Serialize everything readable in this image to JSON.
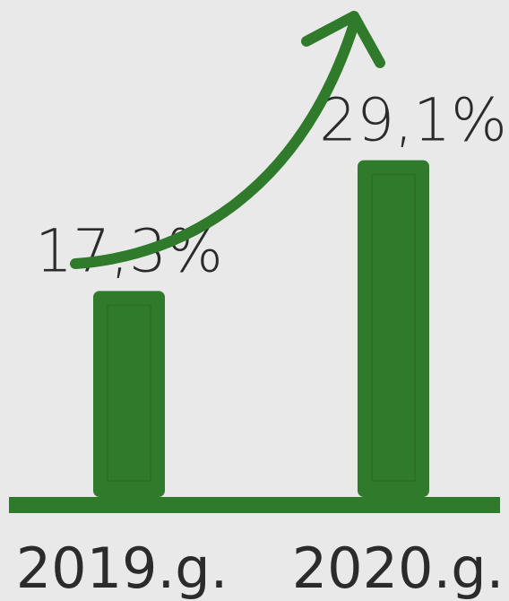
{
  "chart_data": {
    "type": "bar",
    "categories": [
      "2019.g.",
      "2020.g."
    ],
    "values": [
      17.3,
      29.1
    ],
    "data_labels": [
      "17,3%",
      "29,1%"
    ],
    "title": "",
    "xlabel": "",
    "ylabel": "",
    "ylim": [
      0,
      40
    ],
    "grid": false,
    "legend": "none",
    "annotation": "upward-trend-arrow",
    "colors": {
      "bar": "#2f7a2b",
      "bar_inner": "#2a7026",
      "axis": "#2f7a2b",
      "arrow": "#2f7a2b",
      "text": "#2b2b2b",
      "background": "#e9e9e9"
    }
  }
}
